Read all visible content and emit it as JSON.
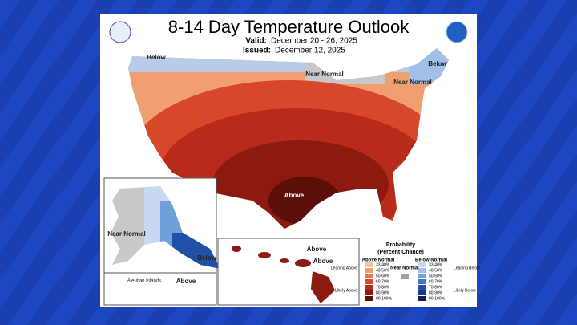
{
  "header": {
    "title": "8-14 Day Temperature Outlook",
    "valid_label": "Valid:",
    "valid": "December 20 - 26, 2025",
    "issued_label": "Issued:",
    "issued": "December 12, 2025"
  },
  "map_labels": [
    "Below",
    "Near Normal",
    "Below",
    "Near Normal",
    "Above",
    "Near Normal",
    "Below",
    "Aleutian Islands",
    "Above",
    "Above",
    "Above"
  ],
  "legend": {
    "title": "Probability",
    "subtitle": "(Percent Chance)",
    "above_title": "Above Normal",
    "near_title": "Near Normal",
    "below_title": "Below Normal",
    "leaning_above": "Leaning Above",
    "likely_above": "Likely Above",
    "leaning_below": "Leaning Below",
    "likely_below": "Likely Below",
    "above": [
      {
        "label": "33-40%",
        "color": "#f5c6a0"
      },
      {
        "label": "40-50%",
        "color": "#f0a070"
      },
      {
        "label": "50-60%",
        "color": "#e8744a"
      },
      {
        "label": "60-70%",
        "color": "#d9472b"
      },
      {
        "label": "70-80%",
        "color": "#b82a1a"
      },
      {
        "label": "80-90%",
        "color": "#8c1a10"
      },
      {
        "label": "90-100%",
        "color": "#5c0e08"
      }
    ],
    "below": [
      {
        "label": "33-40%",
        "color": "#c8d8f0"
      },
      {
        "label": "40-50%",
        "color": "#a0c0e8"
      },
      {
        "label": "50-60%",
        "color": "#70a0dc"
      },
      {
        "label": "60-70%",
        "color": "#4078c8"
      },
      {
        "label": "70-80%",
        "color": "#2050a8"
      },
      {
        "label": "80-90%",
        "color": "#183880"
      },
      {
        "label": "90-100%",
        "color": "#101e58"
      }
    ]
  }
}
